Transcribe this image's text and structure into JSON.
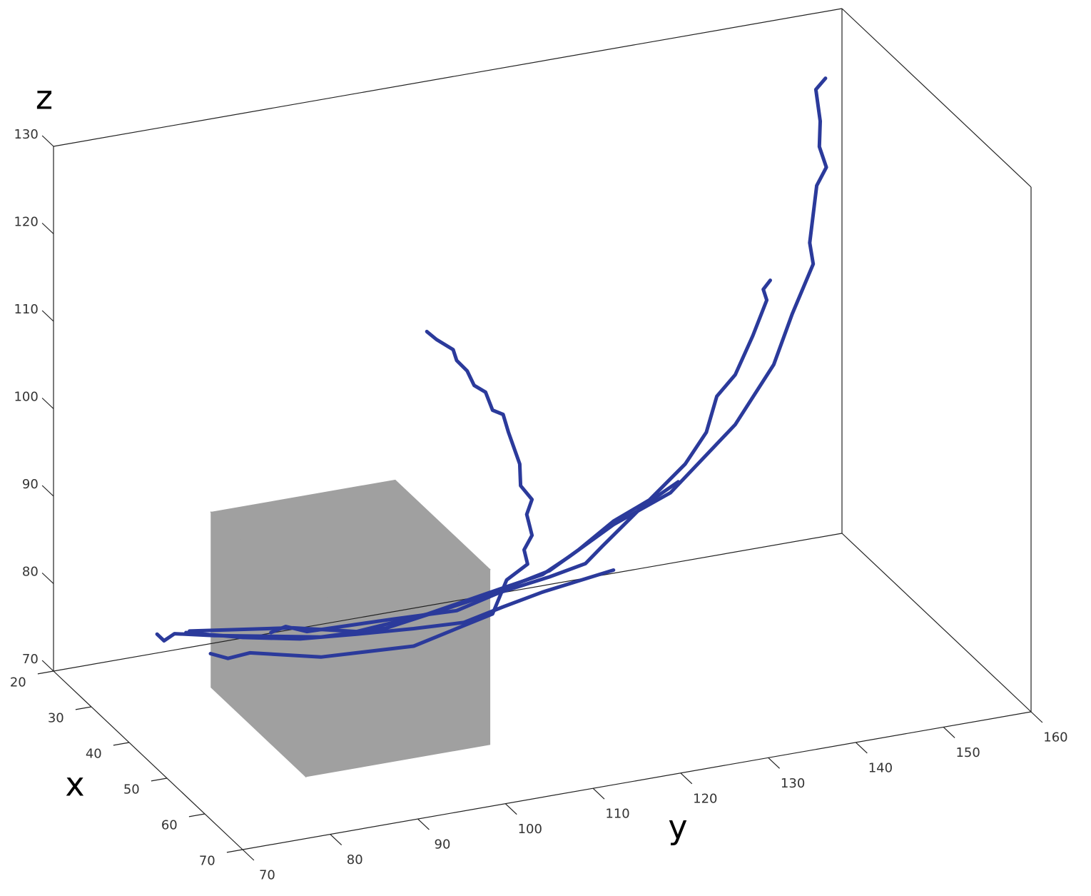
{
  "chart_data": {
    "type": "line3d",
    "xlabel": "x",
    "ylabel": "y",
    "zlabel": "z",
    "xlim": [
      20,
      70
    ],
    "ylim": [
      70,
      160
    ],
    "zlim": [
      70,
      130
    ],
    "xticks": [
      20,
      30,
      40,
      50,
      60,
      70
    ],
    "yticks": [
      70,
      80,
      90,
      100,
      110,
      120,
      130,
      140,
      150,
      160
    ],
    "zticks": [
      70,
      80,
      90,
      100,
      110,
      120,
      130
    ],
    "cuboid": {
      "x": [
        20,
        45
      ],
      "y": [
        88,
        109
      ],
      "z": [
        65,
        85
      ],
      "color": "#a0a0a0"
    },
    "series": [
      {
        "color": "#2b3a9b",
        "x": [
          30,
          30,
          30,
          30,
          30,
          30,
          30,
          30,
          30,
          30,
          30,
          30,
          30,
          30,
          30,
          30,
          30,
          30,
          30
        ],
        "y": [
          77.5,
          78.3,
          79.5,
          84.0,
          96.2,
          103.6,
          115.0,
          122.3,
          125.6,
          129.6,
          133.7,
          137.8,
          140.2,
          141.4,
          143.5,
          145.5,
          147.1,
          146.7,
          147.5
        ],
        "z": [
          77.0,
          76.1,
          76.7,
          75.7,
          73.4,
          73.1,
          74.8,
          76.4,
          78.2,
          80.8,
          82.5,
          85.9,
          89.1,
          93.0,
          95.1,
          99.2,
          103.0,
          104.3,
          105.2
        ]
      },
      {
        "color": "#2b3a9b",
        "x": [
          30,
          30,
          30,
          30,
          30,
          30,
          30,
          30,
          30,
          30,
          30,
          30,
          30,
          30,
          30,
          30,
          30,
          30,
          30,
          30
        ],
        "y": [
          81.2,
          93.0,
          100.3,
          108.4,
          116.6,
          121.5,
          124.7,
          129.6,
          136.1,
          143.5,
          147.9,
          150.0,
          152.4,
          152.0,
          152.8,
          153.9,
          153.1,
          153.2,
          152.7,
          153.8
        ],
        "z": [
          76.7,
          75.0,
          73.3,
          73.9,
          75.3,
          76.1,
          77.7,
          80.4,
          82.9,
          89.4,
          95.5,
          100.9,
          106.2,
          108.7,
          115.1,
          117.0,
          119.5,
          122.4,
          126.1,
          127.2
        ]
      },
      {
        "color": "#2b3a9b",
        "x": [
          30,
          30,
          30,
          30,
          30,
          30,
          30,
          30,
          30,
          30,
          30,
          30,
          30,
          30,
          30,
          30,
          30,
          30,
          30,
          30,
          30,
          30,
          30,
          30
        ],
        "y": [
          83.6,
          85.6,
          88.1,
          96.2,
          106.8,
          115.8,
          117.4,
          119.8,
          119.4,
          120.3,
          119.7,
          120.3,
          119.0,
          118.9,
          117.6,
          117.0,
          115.8,
          115.0,
          113.7,
          112.9,
          111.7,
          111.3,
          109.4,
          108.3
        ],
        "z": [
          73.7,
          72.8,
          73.0,
          71.1,
          70.5,
          72.6,
          76.2,
          77.6,
          79.3,
          80.8,
          83.3,
          84.9,
          86.7,
          89.2,
          93.1,
          95.2,
          95.9,
          98.1,
          99.1,
          100.9,
          102.3,
          103.6,
          105.1,
          106.2
        ]
      },
      {
        "color": "#2b3a9b",
        "x": [
          30,
          30,
          30,
          30,
          30,
          30,
          30,
          30,
          30
        ],
        "y": [
          80.8,
          87.3,
          93.8,
          100.3,
          106.8,
          112.5,
          117.0,
          121.5,
          129.6
        ],
        "z": [
          76.6,
          74.9,
          73.6,
          73.0,
          72.5,
          72.2,
          73.2,
          74.1,
          75.2
        ]
      },
      {
        "color": "#2b3a9b",
        "x": [
          30,
          30,
          30,
          30,
          30,
          30,
          30,
          30,
          30,
          30,
          30
        ],
        "y": [
          90.5,
          92.2,
          94.6,
          104.4,
          111.7,
          116.6,
          122.3,
          126.4,
          128.4,
          132.9,
          137.0
        ],
        "z": [
          74.9,
          75.3,
          74.3,
          74.0,
          73.7,
          74.9,
          75.7,
          76.5,
          78.2,
          81.9,
          84.0
        ]
      }
    ]
  }
}
